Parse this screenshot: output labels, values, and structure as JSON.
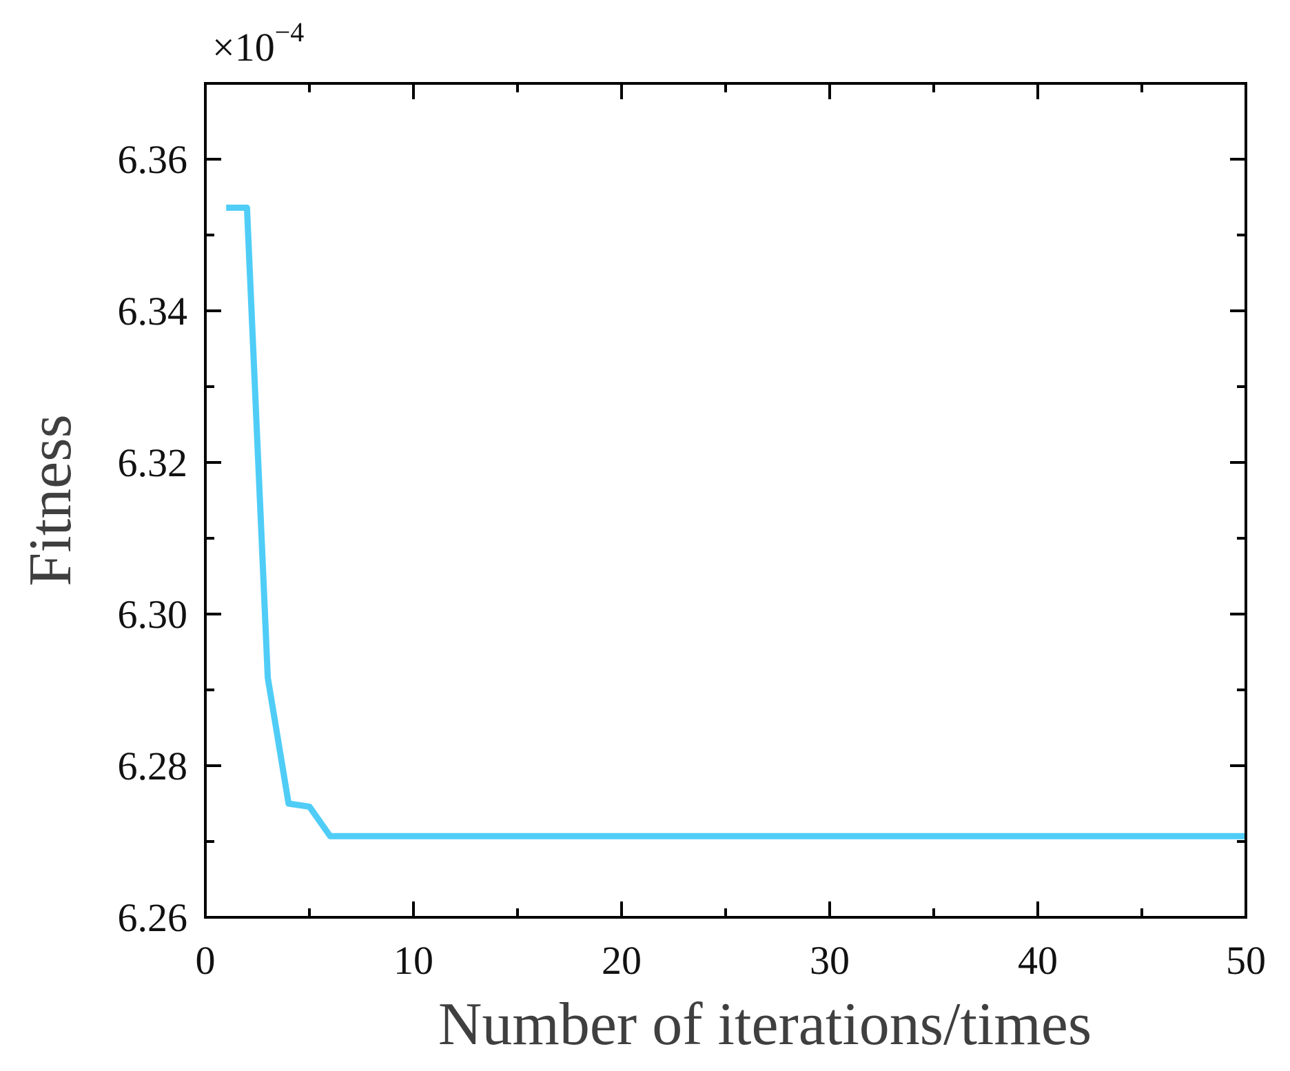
{
  "chart_data": {
    "type": "line",
    "xlabel": "Number of iterations/times",
    "ylabel": "Fitness",
    "y_multiplier": {
      "prefix": "×10",
      "exponent": "−4"
    },
    "xlim": [
      0,
      50
    ],
    "ylim": [
      6.26,
      6.37
    ],
    "x_ticks": [
      0,
      10,
      20,
      30,
      40,
      50
    ],
    "x_tick_labels": [
      "0",
      "10",
      "20",
      "30",
      "40",
      "50"
    ],
    "y_ticks": [
      6.26,
      6.28,
      6.3,
      6.32,
      6.34,
      6.36
    ],
    "y_tick_labels": [
      "6.26",
      "6.28",
      "6.30",
      "6.32",
      "6.34",
      "6.36"
    ],
    "x_minor_tick_step": 5,
    "y_minor_tick_step": 0.01,
    "grid": false,
    "series": [
      {
        "color": "#4FCDF7",
        "x": [
          1,
          2,
          3,
          4,
          5,
          6,
          7,
          8,
          9,
          10,
          11,
          12,
          13,
          14,
          15,
          16,
          17,
          18,
          19,
          20,
          21,
          22,
          23,
          24,
          25,
          26,
          27,
          28,
          29,
          30,
          31,
          32,
          33,
          34,
          35,
          36,
          37,
          38,
          39,
          40,
          41,
          42,
          43,
          44,
          45,
          46,
          47,
          48,
          49,
          50
        ],
        "y": [
          6.3536,
          6.3536,
          6.2916,
          6.275,
          6.2746,
          6.2707,
          6.2707,
          6.2707,
          6.2707,
          6.2707,
          6.2707,
          6.2707,
          6.2707,
          6.2707,
          6.2707,
          6.2707,
          6.2707,
          6.2707,
          6.2707,
          6.2707,
          6.2707,
          6.2707,
          6.2707,
          6.2707,
          6.2707,
          6.2707,
          6.2707,
          6.2707,
          6.2707,
          6.2707,
          6.2707,
          6.2707,
          6.2707,
          6.2707,
          6.2707,
          6.2707,
          6.2707,
          6.2707,
          6.2707,
          6.2707,
          6.2707,
          6.2707,
          6.2707,
          6.2707,
          6.2707,
          6.2707,
          6.2707,
          6.2707,
          6.2707,
          6.2707
        ]
      }
    ]
  }
}
